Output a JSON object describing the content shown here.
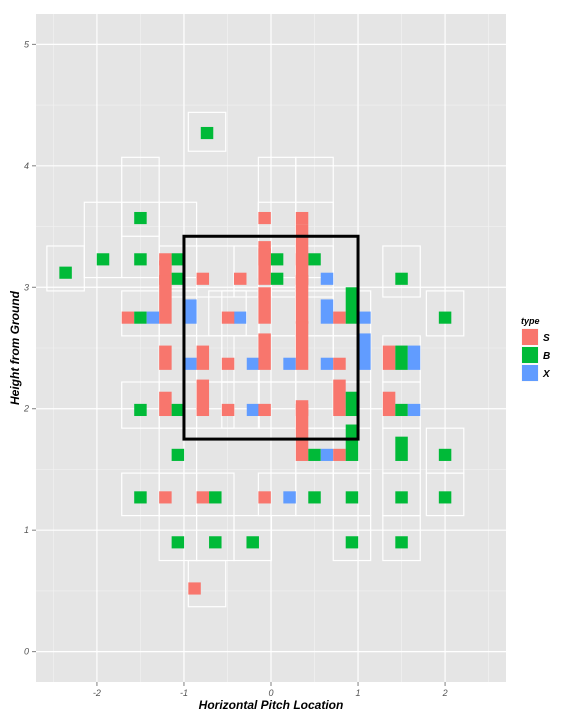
{
  "chart_data": {
    "type": "bar",
    "xlabel": "Horizontal Pitch Location",
    "ylabel": "Height from Ground",
    "xlim": [
      -2.7,
      2.7
    ],
    "ylim": [
      -0.25,
      5.25
    ],
    "x_ticks": [
      -2,
      -1,
      0,
      1,
      2
    ],
    "y_ticks": [
      0,
      1,
      2,
      3,
      4,
      5
    ],
    "x_tick_labels": [
      "-2",
      "-1",
      "0",
      "1",
      "2"
    ],
    "y_tick_labels": [
      "0",
      "1",
      "2",
      "3",
      "4",
      "5"
    ],
    "grid": true,
    "legend": {
      "title": "type",
      "position": "right",
      "entries": [
        {
          "label": "S",
          "color": "#F8766D"
        },
        {
          "label": "B",
          "color": "#00BA38"
        },
        {
          "label": "X",
          "color": "#619CFF"
        }
      ]
    },
    "strike_zone": {
      "x": [
        -1.0,
        1.0
      ],
      "y": [
        1.75,
        3.42
      ]
    },
    "bin_width": 0.43,
    "bins": [
      {
        "x": -0.735,
        "y0": 4.12,
        "y1": 4.44,
        "counts": {
          "S": 0,
          "B": 1,
          "X": 0
        }
      },
      {
        "x": -1.5,
        "y0": 3.42,
        "y1": 4.07,
        "counts": {
          "S": 0,
          "B": 1,
          "X": 0
        }
      },
      {
        "x": 0.07,
        "y0": 3.42,
        "y1": 4.07,
        "counts": {
          "S": 1,
          "B": 0,
          "X": 0
        }
      },
      {
        "x": 0.5,
        "y0": 3.42,
        "y1": 4.07,
        "counts": {
          "S": 1,
          "B": 0,
          "X": 0
        }
      },
      {
        "x": -1.93,
        "y0": 3.08,
        "y1": 3.7,
        "counts": {
          "S": 0,
          "B": 1,
          "X": 0
        }
      },
      {
        "x": -1.5,
        "y0": 3.08,
        "y1": 3.7,
        "counts": {
          "S": 0,
          "B": 1,
          "X": 0
        }
      },
      {
        "x": -1.07,
        "y0": 3.08,
        "y1": 3.7,
        "counts": {
          "S": 1,
          "B": 1,
          "X": 0
        }
      },
      {
        "x": 0.07,
        "y0": 3.08,
        "y1": 3.7,
        "counts": {
          "S": 2,
          "B": 1,
          "X": 0
        }
      },
      {
        "x": 0.5,
        "y0": 3.08,
        "y1": 3.7,
        "counts": {
          "S": 1,
          "B": 1,
          "X": 0
        }
      },
      {
        "x": -2.36,
        "y0": 2.97,
        "y1": 3.34,
        "counts": {
          "S": 0,
          "B": 1,
          "X": 0
        }
      },
      {
        "x": -1.07,
        "y0": 2.92,
        "y1": 3.34,
        "counts": {
          "S": 2,
          "B": 1,
          "X": 0
        }
      },
      {
        "x": -0.64,
        "y0": 2.92,
        "y1": 3.34,
        "counts": {
          "S": 1,
          "B": 0,
          "X": 0
        }
      },
      {
        "x": -0.21,
        "y0": 2.92,
        "y1": 3.34,
        "counts": {
          "S": 1,
          "B": 0,
          "X": 0
        }
      },
      {
        "x": 0.07,
        "y0": 2.92,
        "y1": 3.34,
        "counts": {
          "S": 3,
          "B": 1,
          "X": 0
        }
      },
      {
        "x": 0.5,
        "y0": 2.92,
        "y1": 3.34,
        "counts": {
          "S": 5,
          "B": 0,
          "X": 1
        }
      },
      {
        "x": 1.5,
        "y0": 2.92,
        "y1": 3.34,
        "counts": {
          "S": 0,
          "B": 1,
          "X": 0
        }
      },
      {
        "x": -1.5,
        "y0": 2.6,
        "y1": 2.97,
        "counts": {
          "S": 1,
          "B": 1,
          "X": 1
        }
      },
      {
        "x": -1.07,
        "y0": 2.6,
        "y1": 2.97,
        "counts": {
          "S": 4,
          "B": 0,
          "X": 2
        }
      },
      {
        "x": -0.5,
        "y0": 2.6,
        "y1": 2.97,
        "counts": {
          "S": 0,
          "B": 0,
          "X": 1
        }
      },
      {
        "x": -0.35,
        "y0": 2.6,
        "y1": 2.97,
        "counts": {
          "S": 1,
          "B": 0,
          "X": 0
        }
      },
      {
        "x": 0.07,
        "y0": 2.6,
        "y1": 2.97,
        "counts": {
          "S": 3,
          "B": 0,
          "X": 0
        }
      },
      {
        "x": 0.5,
        "y0": 2.6,
        "y1": 2.97,
        "counts": {
          "S": 4,
          "B": 0,
          "X": 2
        }
      },
      {
        "x": 0.93,
        "y0": 2.6,
        "y1": 2.97,
        "counts": {
          "S": 1,
          "B": 3,
          "X": 1
        }
      },
      {
        "x": 2.0,
        "y0": 2.6,
        "y1": 2.97,
        "counts": {
          "S": 0,
          "B": 1,
          "X": 0
        }
      },
      {
        "x": -1.07,
        "y0": 2.22,
        "y1": 2.6,
        "counts": {
          "S": 2,
          "B": 0,
          "X": 1
        }
      },
      {
        "x": -0.64,
        "y0": 2.22,
        "y1": 2.6,
        "counts": {
          "S": 2,
          "B": 0,
          "X": 0
        }
      },
      {
        "x": -0.35,
        "y0": 2.22,
        "y1": 2.6,
        "counts": {
          "S": 1,
          "B": 0,
          "X": 1
        }
      },
      {
        "x": 0.07,
        "y0": 2.22,
        "y1": 2.6,
        "counts": {
          "S": 3,
          "B": 0,
          "X": 1
        }
      },
      {
        "x": 0.5,
        "y0": 2.22,
        "y1": 2.6,
        "counts": {
          "S": 4,
          "B": 0,
          "X": 1
        }
      },
      {
        "x": 0.93,
        "y0": 2.22,
        "y1": 2.6,
        "counts": {
          "S": 1,
          "B": 0,
          "X": 3
        }
      },
      {
        "x": 1.5,
        "y0": 2.22,
        "y1": 2.6,
        "counts": {
          "S": 2,
          "B": 2,
          "X": 2
        }
      },
      {
        "x": -1.5,
        "y0": 1.84,
        "y1": 2.22,
        "counts": {
          "S": 0,
          "B": 1,
          "X": 0
        }
      },
      {
        "x": -1.07,
        "y0": 1.84,
        "y1": 2.22,
        "counts": {
          "S": 2,
          "B": 1,
          "X": 0
        }
      },
      {
        "x": -0.64,
        "y0": 1.84,
        "y1": 2.22,
        "counts": {
          "S": 3,
          "B": 0,
          "X": 0
        }
      },
      {
        "x": -0.35,
        "y0": 1.84,
        "y1": 2.22,
        "counts": {
          "S": 1,
          "B": 0,
          "X": 1
        }
      },
      {
        "x": 0.07,
        "y0": 1.84,
        "y1": 2.22,
        "counts": {
          "S": 1,
          "B": 0,
          "X": 0
        }
      },
      {
        "x": 0.5,
        "y0": 1.84,
        "y1": 2.22,
        "counts": {
          "S": 1,
          "B": 0,
          "X": 0
        }
      },
      {
        "x": 0.93,
        "y0": 1.84,
        "y1": 2.22,
        "counts": {
          "S": 3,
          "B": 2,
          "X": 0
        }
      },
      {
        "x": 1.5,
        "y0": 1.84,
        "y1": 2.22,
        "counts": {
          "S": 2,
          "B": 1,
          "X": 1
        }
      },
      {
        "x": -1.07,
        "y0": 1.47,
        "y1": 1.84,
        "counts": {
          "S": 0,
          "B": 1,
          "X": 0
        }
      },
      {
        "x": 0.5,
        "y0": 1.47,
        "y1": 1.84,
        "counts": {
          "S": 5,
          "B": 1,
          "X": 1
        }
      },
      {
        "x": 0.93,
        "y0": 1.47,
        "y1": 1.84,
        "counts": {
          "S": 1,
          "B": 3,
          "X": 0
        }
      },
      {
        "x": 1.5,
        "y0": 1.47,
        "y1": 1.84,
        "counts": {
          "S": 0,
          "B": 2,
          "X": 0
        }
      },
      {
        "x": 2.0,
        "y0": 1.47,
        "y1": 1.84,
        "counts": {
          "S": 0,
          "B": 1,
          "X": 0
        }
      },
      {
        "x": -1.5,
        "y0": 1.12,
        "y1": 1.47,
        "counts": {
          "S": 0,
          "B": 1,
          "X": 0
        }
      },
      {
        "x": -1.07,
        "y0": 1.12,
        "y1": 1.47,
        "counts": {
          "S": 1,
          "B": 0,
          "X": 0
        }
      },
      {
        "x": -0.64,
        "y0": 1.12,
        "y1": 1.47,
        "counts": {
          "S": 1,
          "B": 1,
          "X": 0
        }
      },
      {
        "x": 0.07,
        "y0": 1.12,
        "y1": 1.47,
        "counts": {
          "S": 1,
          "B": 0,
          "X": 1
        }
      },
      {
        "x": 0.5,
        "y0": 1.12,
        "y1": 1.47,
        "counts": {
          "S": 0,
          "B": 1,
          "X": 0
        }
      },
      {
        "x": 0.93,
        "y0": 1.12,
        "y1": 1.47,
        "counts": {
          "S": 0,
          "B": 1,
          "X": 0
        }
      },
      {
        "x": 1.5,
        "y0": 1.12,
        "y1": 1.47,
        "counts": {
          "S": 0,
          "B": 1,
          "X": 0
        }
      },
      {
        "x": 2.0,
        "y0": 1.12,
        "y1": 1.47,
        "counts": {
          "S": 0,
          "B": 1,
          "X": 0
        }
      },
      {
        "x": -1.07,
        "y0": 0.75,
        "y1": 1.12,
        "counts": {
          "S": 0,
          "B": 1,
          "X": 0
        }
      },
      {
        "x": -0.64,
        "y0": 0.75,
        "y1": 1.12,
        "counts": {
          "S": 0,
          "B": 1,
          "X": 0
        }
      },
      {
        "x": -0.21,
        "y0": 0.75,
        "y1": 1.12,
        "counts": {
          "S": 0,
          "B": 1,
          "X": 0
        }
      },
      {
        "x": 0.93,
        "y0": 0.75,
        "y1": 1.12,
        "counts": {
          "S": 0,
          "B": 1,
          "X": 0
        }
      },
      {
        "x": 1.5,
        "y0": 0.75,
        "y1": 1.12,
        "counts": {
          "S": 0,
          "B": 1,
          "X": 0
        }
      },
      {
        "x": -0.735,
        "y0": 0.37,
        "y1": 0.75,
        "counts": {
          "S": 1,
          "B": 0,
          "X": 0
        }
      }
    ]
  }
}
